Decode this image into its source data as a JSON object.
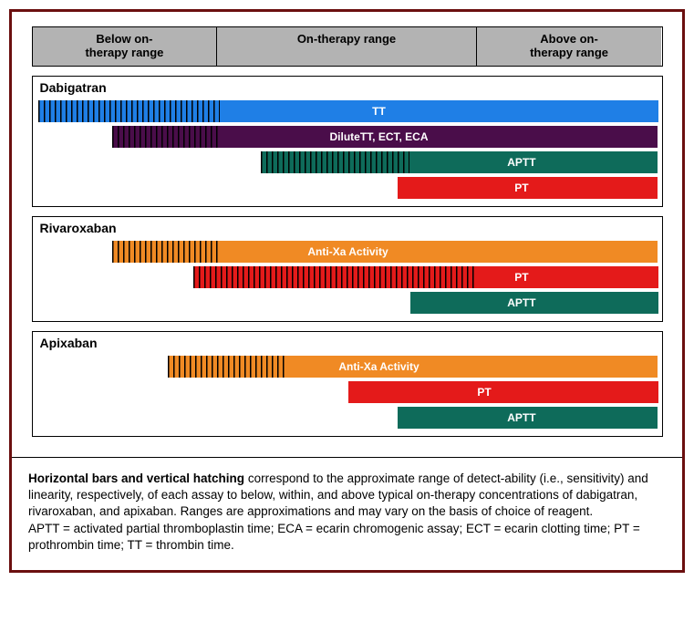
{
  "layout": {
    "trackWidth": 692,
    "columns": [
      {
        "label": "Below on-\ntherapy range",
        "fracStart": 0.0,
        "fracEnd": 0.294
      },
      {
        "label": "On-therapy range",
        "fracStart": 0.294,
        "fracEnd": 0.706
      },
      {
        "label": "Above on-\ntherapy range",
        "fracStart": 0.706,
        "fracEnd": 1.0
      }
    ]
  },
  "colors": {
    "headerBg": "#b3b3b3",
    "frameBorder": "#6b0f0f",
    "tt": "#1f7fe6",
    "dilute": "#4a0d4a",
    "aptt": "#0e6b5a",
    "pt": "#e41a1a",
    "antiXa": "#f08a24"
  },
  "panels": [
    {
      "title": "Dabigatran",
      "bars": [
        {
          "label": "TT",
          "colorKey": "tt",
          "start": 0.0,
          "end": 1.0,
          "hatchStart": 0.0,
          "hatchEnd": 0.294,
          "labelPos": 0.55
        },
        {
          "label": "DiluteTT, ECT, ECA",
          "colorKey": "dilute",
          "start": 0.12,
          "end": 1.0,
          "hatchStart": 0.12,
          "hatchEnd": 0.294,
          "labelPos": 0.55
        },
        {
          "label": "APTT",
          "colorKey": "aptt",
          "start": 0.36,
          "end": 1.0,
          "hatchStart": 0.36,
          "hatchEnd": 0.6,
          "labelPos": 0.78
        },
        {
          "label": "PT",
          "colorKey": "pt",
          "start": 0.58,
          "end": 1.0,
          "hatchStart": null,
          "hatchEnd": null,
          "labelPos": 0.78
        }
      ]
    },
    {
      "title": "Rivaroxaban",
      "bars": [
        {
          "label": "Anti-Xa Activity",
          "colorKey": "antiXa",
          "start": 0.12,
          "end": 1.0,
          "hatchStart": 0.12,
          "hatchEnd": 0.294,
          "labelPos": 0.5
        },
        {
          "label": "PT",
          "colorKey": "pt",
          "start": 0.25,
          "end": 1.0,
          "hatchStart": 0.25,
          "hatchEnd": 0.706,
          "labelPos": 0.78
        },
        {
          "label": "APTT",
          "colorKey": "aptt",
          "start": 0.6,
          "end": 1.0,
          "hatchStart": null,
          "hatchEnd": null,
          "labelPos": 0.78
        }
      ]
    },
    {
      "title": "Apixaban",
      "bars": [
        {
          "label": "Anti-Xa Activity",
          "colorKey": "antiXa",
          "start": 0.21,
          "end": 1.0,
          "hatchStart": 0.21,
          "hatchEnd": 0.4,
          "labelPos": 0.55
        },
        {
          "label": "PT",
          "colorKey": "pt",
          "start": 0.5,
          "end": 1.0,
          "hatchStart": null,
          "hatchEnd": null,
          "labelPos": 0.72
        },
        {
          "label": "APTT",
          "colorKey": "aptt",
          "start": 0.58,
          "end": 1.0,
          "hatchStart": null,
          "hatchEnd": null,
          "labelPos": 0.78
        }
      ]
    }
  ],
  "legend": {
    "lead": "Horizontal bars and vertical hatching",
    "body1": " correspond to the approximate range of detect-ability (i.e., sensitivity) and linearity, respectively, of each assay to below, within, and above typical on-therapy concentrations of dabigatran, rivaroxaban, and apixaban. Ranges are approximations and may vary on the basis of choice of reagent.",
    "body2": "APTT = activated partial thromboplastin time; ECA = ecarin chromogenic assay; ECT = ecarin clotting time; PT = prothrombin time; TT = thrombin time."
  }
}
